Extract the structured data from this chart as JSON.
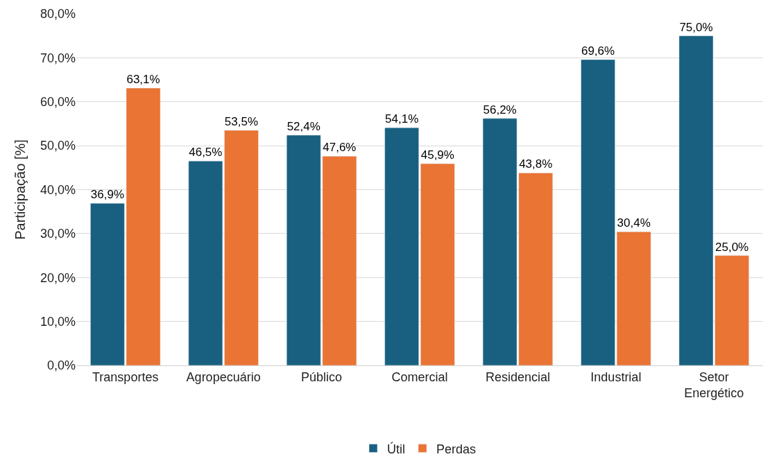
{
  "chart_data": {
    "type": "bar",
    "ylabel": "Participação [%]",
    "categories": [
      "Transportes",
      "Agropecuário",
      "Público",
      "Comercial",
      "Residencial",
      "Industrial",
      "Setor Energético"
    ],
    "series": [
      {
        "name": "Útil",
        "color": "#196080",
        "values": [
          36.9,
          46.5,
          52.4,
          54.1,
          56.2,
          69.6,
          75.0
        ],
        "value_labels": [
          "36,9%",
          "46,5%",
          "52,4%",
          "54,1%",
          "56,2%",
          "69,6%",
          "75,0%"
        ]
      },
      {
        "name": "Perdas",
        "color": "#e97434",
        "values": [
          63.1,
          53.5,
          47.6,
          45.9,
          43.8,
          30.4,
          25.0
        ],
        "value_labels": [
          "63,1%",
          "53,5%",
          "47,6%",
          "45,9%",
          "43,8%",
          "30,4%",
          "25,0%"
        ]
      }
    ],
    "ylim": [
      0,
      80
    ],
    "yticks": [
      {
        "value": 0,
        "label": "0,0%"
      },
      {
        "value": 10,
        "label": "10,0%"
      },
      {
        "value": 20,
        "label": "20,0%"
      },
      {
        "value": 30,
        "label": "30,0%"
      },
      {
        "value": 40,
        "label": "40,0%"
      },
      {
        "value": 50,
        "label": "50,0%"
      },
      {
        "value": 60,
        "label": "60,0%"
      },
      {
        "value": 70,
        "label": "70,0%"
      },
      {
        "value": 80,
        "label": "80,0%"
      }
    ],
    "grid": "y",
    "legend": "bottom"
  }
}
